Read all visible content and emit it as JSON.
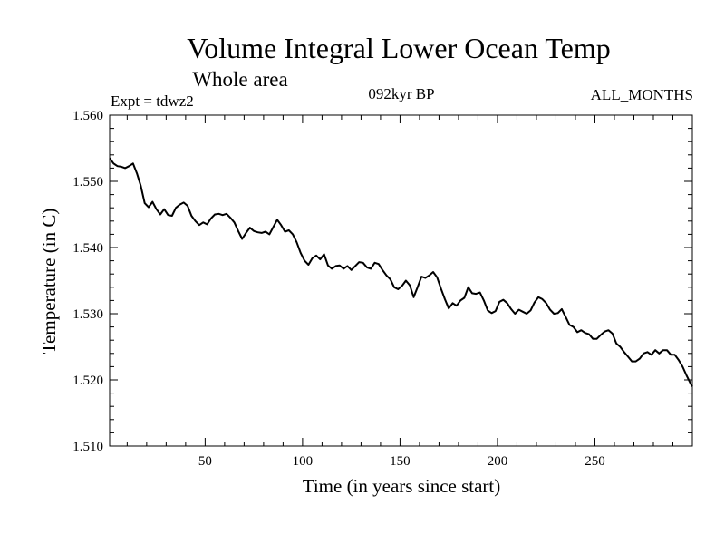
{
  "chart_data": {
    "type": "line",
    "title": "Volume Integral Lower Ocean Temp",
    "subtitle": "Whole area",
    "annotation_left": "Expt = tdwz2",
    "annotation_center": "092kyr BP",
    "annotation_right": "ALL_MONTHS",
    "xlabel": "Time (in years since start)",
    "ylabel": "Temperature (in C)",
    "xlim": [
      1,
      300
    ],
    "ylim": [
      1.51,
      1.56
    ],
    "x_ticks": [
      50,
      100,
      150,
      200,
      250
    ],
    "y_ticks": [
      "1.510",
      "1.520",
      "1.530",
      "1.540",
      "1.550",
      "1.560"
    ],
    "grid": false,
    "line_color": "#000000",
    "series": [
      {
        "x": [
          1,
          3,
          5,
          7,
          9,
          11,
          13,
          15,
          17,
          19,
          21,
          23,
          25,
          27,
          29,
          31,
          33,
          35,
          37,
          39,
          41,
          43,
          45,
          47,
          49,
          51,
          53,
          55,
          57,
          59,
          61,
          63,
          65,
          67,
          69,
          71,
          73,
          75,
          77,
          79,
          81,
          83,
          85,
          87,
          89,
          91,
          93,
          95,
          97,
          99,
          101,
          103,
          105,
          107,
          109,
          111,
          113,
          115,
          117,
          119,
          121,
          123,
          125,
          127,
          129,
          131,
          133,
          135,
          137,
          139,
          141,
          143,
          145,
          147,
          149,
          151,
          153,
          155,
          157,
          159,
          161,
          163,
          165,
          167,
          169,
          171,
          173,
          175,
          177,
          179,
          181,
          183,
          185,
          187,
          189,
          191,
          193,
          195,
          197,
          199,
          201,
          203,
          205,
          207,
          209,
          211,
          213,
          215,
          217,
          219,
          221,
          223,
          225,
          227,
          229,
          231,
          233,
          235,
          237,
          239,
          241,
          243,
          245,
          247,
          249,
          251,
          253,
          255,
          257,
          259,
          261,
          263,
          265,
          267,
          269,
          271,
          273,
          275,
          277,
          279,
          281,
          283,
          285,
          287,
          289,
          291,
          293,
          295,
          297,
          299,
          300
        ],
        "values": [
          1.5535,
          1.5527,
          1.5523,
          1.5522,
          1.552,
          1.5523,
          1.5527,
          1.5512,
          1.5493,
          1.5467,
          1.5461,
          1.5469,
          1.5458,
          1.545,
          1.5458,
          1.5449,
          1.5448,
          1.546,
          1.5465,
          1.5468,
          1.5463,
          1.5448,
          1.544,
          1.5434,
          1.5438,
          1.5435,
          1.5444,
          1.545,
          1.5451,
          1.5449,
          1.5451,
          1.5445,
          1.5438,
          1.5425,
          1.5413,
          1.5422,
          1.543,
          1.5425,
          1.5423,
          1.5422,
          1.5424,
          1.542,
          1.5431,
          1.5442,
          1.5434,
          1.5424,
          1.5426,
          1.542,
          1.5408,
          1.5392,
          1.538,
          1.5374,
          1.5384,
          1.5388,
          1.5382,
          1.539,
          1.5373,
          1.5368,
          1.5372,
          1.5373,
          1.5368,
          1.5372,
          1.5366,
          1.5372,
          1.5378,
          1.5377,
          1.537,
          1.5368,
          1.5377,
          1.5375,
          1.5366,
          1.5358,
          1.5352,
          1.534,
          1.5337,
          1.5342,
          1.535,
          1.5343,
          1.5325,
          1.534,
          1.5356,
          1.5354,
          1.5358,
          1.5363,
          1.5355,
          1.5338,
          1.5322,
          1.5308,
          1.5316,
          1.5312,
          1.532,
          1.5324,
          1.534,
          1.5331,
          1.533,
          1.5332,
          1.532,
          1.5305,
          1.5301,
          1.5304,
          1.5318,
          1.5321,
          1.5316,
          1.5307,
          1.53,
          1.5306,
          1.5303,
          1.53,
          1.5305,
          1.5317,
          1.5325,
          1.5322,
          1.5316,
          1.5306,
          1.53,
          1.5301,
          1.5307,
          1.5295,
          1.5283,
          1.528,
          1.5272,
          1.5275,
          1.5271,
          1.5269,
          1.5262,
          1.5262,
          1.5268,
          1.5273,
          1.5275,
          1.527,
          1.5255,
          1.525,
          1.5242,
          1.5235,
          1.5228,
          1.5228,
          1.5232,
          1.524,
          1.5242,
          1.5238,
          1.5245,
          1.524,
          1.5245,
          1.5245,
          1.5238,
          1.5238,
          1.523,
          1.522,
          1.5207,
          1.5195,
          1.519
        ]
      }
    ]
  }
}
